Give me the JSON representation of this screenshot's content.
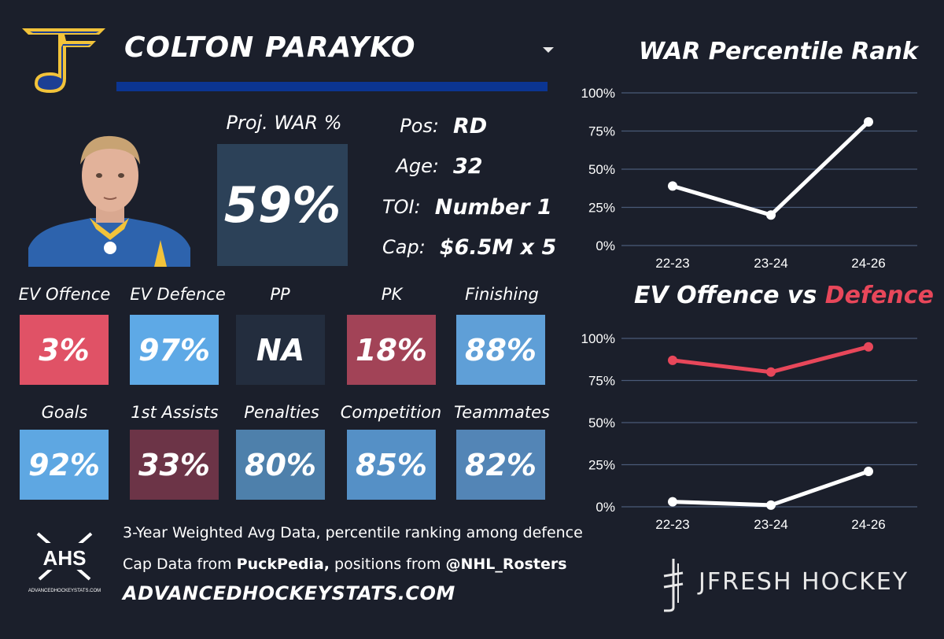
{
  "player": {
    "name": "COLTON PARAYKO",
    "proj_war_label": "Proj. WAR %",
    "proj_war_value": "59%"
  },
  "info": [
    {
      "label": "Pos:",
      "value": "RD"
    },
    {
      "label": "Age:",
      "value": "32"
    },
    {
      "label": "TOI:",
      "value": "Number 1"
    },
    {
      "label": "Cap:",
      "value": "$6.5M x 5"
    }
  ],
  "stats": [
    {
      "label": "EV Offence",
      "value": "3%",
      "color": "#e05266"
    },
    {
      "label": "EV Defence",
      "value": "97%",
      "color": "#5ea9e6"
    },
    {
      "label": "PP",
      "value": "NA",
      "color": "#232d3e"
    },
    {
      "label": "PK",
      "value": "18%",
      "color": "#a24357"
    },
    {
      "label": "Finishing",
      "value": "88%",
      "color": "#5f9fd7"
    },
    {
      "label": "Goals",
      "value": "92%",
      "color": "#5ea7e2"
    },
    {
      "label": "1st Assists",
      "value": "33%",
      "color": "#6c3447"
    },
    {
      "label": "Penalties",
      "value": "80%",
      "color": "#4e80ab"
    },
    {
      "label": "Competition",
      "value": "85%",
      "color": "#5590c6"
    },
    {
      "label": "Teammates",
      "value": "82%",
      "color": "#5385b6"
    }
  ],
  "footer": {
    "line1": "3-Year Weighted Avg Data, percentile ranking among defence",
    "line2_pre": "Cap Data from ",
    "line2_b1": "PuckPedia,",
    "line2_mid": " positions from ",
    "line2_b2": "@NHL_Rosters",
    "site": "ADVANCEDHOCKEYSTATS.COM",
    "ahs_text": "AHS",
    "ahs_sub": "ADVANCEDHOCKEYSTATS.COM",
    "brand": "JFRESH HOCKEY"
  },
  "colors": {
    "background": "#1b1f2b",
    "name_bar": "#0b3592",
    "war_box": "#2c4158",
    "offence_line": "#e8475a",
    "defence_line": "#ffffff"
  },
  "chart_data": [
    {
      "type": "line",
      "title": "WAR Percentile Rank",
      "categories": [
        "22-23",
        "23-24",
        "24-26"
      ],
      "series": [
        {
          "values": [
            39,
            20,
            81
          ]
        }
      ],
      "ylim": [
        0,
        100
      ],
      "yticks": [
        "0%",
        "25%",
        "50%",
        "75%",
        "100%"
      ],
      "grid": true
    },
    {
      "type": "line",
      "title_part1": "EV Offence vs ",
      "title_part2": "Defence",
      "categories": [
        "22-23",
        "23-24",
        "24-26"
      ],
      "series": [
        {
          "values": [
            87,
            80,
            95
          ],
          "color": "#e8475a"
        },
        {
          "values": [
            3,
            1,
            21
          ],
          "color": "#ffffff"
        }
      ],
      "ylim": [
        0,
        100
      ],
      "yticks": [
        "0%",
        "25%",
        "50%",
        "75%",
        "100%"
      ],
      "grid": true
    }
  ]
}
